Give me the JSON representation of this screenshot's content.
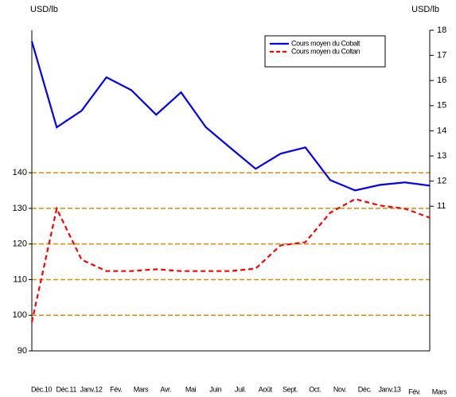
{
  "chart_data": {
    "type": "line",
    "ylabel": "USD/lb",
    "y2label": "USD/lb",
    "categories": [
      "Déc.10",
      "Déc.11",
      "Janv.12",
      "Fév.",
      "Mars",
      "Avr.",
      "Mai",
      "Juin",
      "Juil.",
      "Août",
      "Sept.",
      "Oct.",
      "Nov.",
      "Déc.",
      "Janv.13",
      "Fév.",
      "Mars"
    ],
    "series": [
      {
        "name": "Cours moyen du Cobalt",
        "color": "#0000ff",
        "dash": false,
        "axis": "y2",
        "values": [
          17.56,
          14.14,
          14.8,
          16.13,
          15.62,
          14.64,
          15.53,
          14.14,
          13.31,
          12.49,
          13.09,
          13.34,
          12.04,
          11.63,
          11.85,
          11.95,
          11.82
        ]
      },
      {
        "name": "Cours moyen du Coltan",
        "color": "#ff0000",
        "dash": true,
        "axis": "y",
        "values": [
          98.1,
          129.9,
          115.6,
          112.4,
          112.4,
          112.9,
          112.4,
          112.4,
          112.4,
          113.1,
          119.6,
          120.5,
          128.8,
          132.6,
          130.8,
          129.9,
          127.4
        ]
      }
    ],
    "ylim": [
      90,
      180
    ],
    "yticks": [
      90,
      100,
      110,
      120,
      130,
      140
    ],
    "y2lim": [
      5.25,
      18
    ],
    "y2ticks": [
      11,
      12,
      13,
      14,
      15,
      16,
      17,
      18
    ],
    "grid": true,
    "grid_color": "#d98c00",
    "legend": "upper right"
  }
}
